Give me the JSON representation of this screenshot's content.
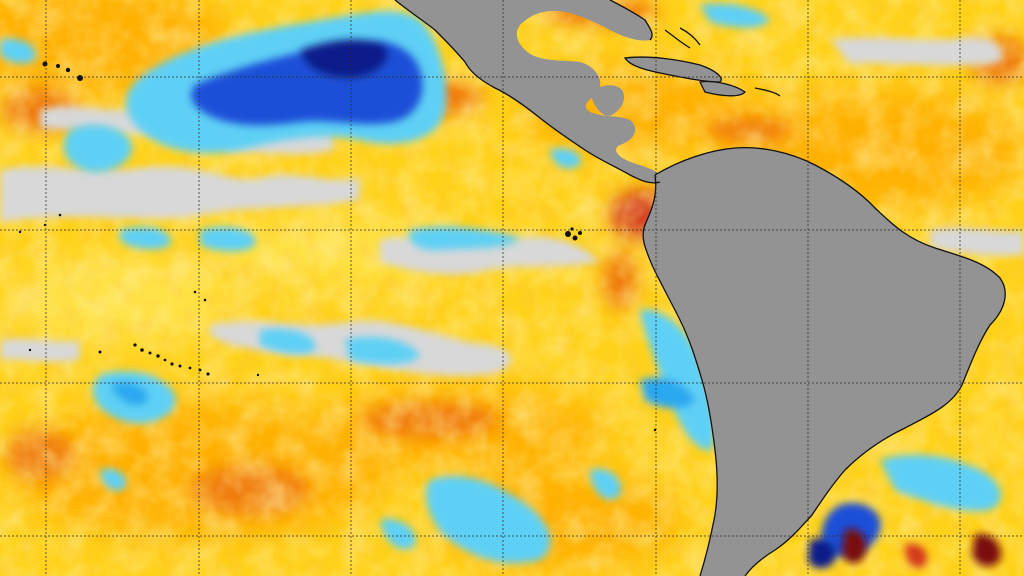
{
  "map": {
    "type": "sea-surface-temperature-anomaly",
    "region": "eastern-pacific-and-south-america",
    "colors": {
      "ocean_base": "#ffd21a",
      "ocean_warm_light": "#ffe34a",
      "ocean_warm": "#ffb000",
      "ocean_hot": "#f07a0a",
      "ocean_very_hot": "#d4381a",
      "ocean_extreme": "#7a0e08",
      "ocean_neutral": "#d8d8d8",
      "ocean_cool": "#5fd0f5",
      "ocean_cooler": "#2aa8f0",
      "ocean_cold": "#1a4fd8",
      "ocean_very_cold": "#0a1a8a",
      "land": "#939393",
      "coastline": "#111111",
      "grid": "#2a2a2a"
    },
    "grid": {
      "visible": true,
      "style": "dotted"
    },
    "features": [
      "north-america-land",
      "central-america-land",
      "caribbean-islands",
      "south-america-land",
      "galapagos-islands",
      "hawaiian-islands",
      "pacific-atolls"
    ]
  }
}
